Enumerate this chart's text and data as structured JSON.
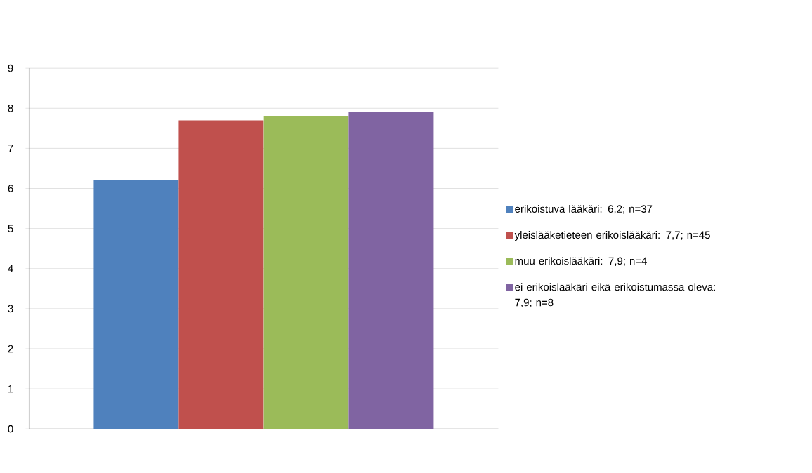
{
  "chart_data": {
    "type": "bar",
    "categories": [
      null
    ],
    "series": [
      {
        "name": "erikoistuva lääkäri: 6,2; n=37",
        "color": "#4f81bd",
        "values": [
          6.2
        ]
      },
      {
        "name": "yleislääketieteen erikoislääkäri: 7,7; n=45",
        "color": "#c0504d",
        "values": [
          7.7
        ]
      },
      {
        "name": "muu erikoislääkäri: 7,9; n=4",
        "color": "#9bbb59",
        "values": [
          7.8
        ]
      },
      {
        "name": "ei erikoislääkäri eikä erikoistumassa oleva: 7,9; n=8",
        "color": "#8064a2",
        "values": [
          7.9
        ]
      }
    ],
    "ylim": [
      0,
      9
    ],
    "yticks": [
      0,
      1,
      2,
      3,
      4,
      5,
      6,
      7,
      8,
      9
    ],
    "grid": "y",
    "legend": "right"
  }
}
